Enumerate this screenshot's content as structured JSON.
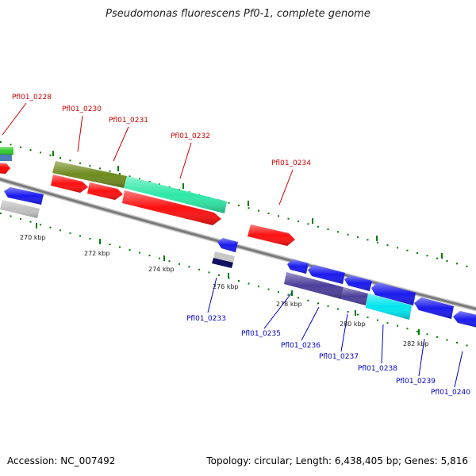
{
  "title": "Pseudomonas fluorescens Pf0-1, complete genome",
  "footer": {
    "accession": "Accession: NC_007492",
    "summary": "Topology: circular; Length: 6,438,405 bp; Genes: 5,816"
  },
  "colors": {
    "top_label": "#cc0000",
    "bottom_label": "#0000cc",
    "backbone": "#8a8a8a",
    "tick": "#007a00"
  },
  "scale_ticks": [
    "270 kbp",
    "272 kbp",
    "274 kbp",
    "276 kbp",
    "278 kbp",
    "280 kbp",
    "282 kbp"
  ],
  "gene_labels_top": [
    "Pfl01_0228",
    "Pfl01_0230",
    "Pfl01_0231",
    "Pfl01_0232",
    "Pfl01_0234"
  ],
  "gene_labels_bottom": [
    "Pfl01_0233",
    "Pfl01_0235",
    "Pfl01_0236",
    "Pfl01_0237",
    "Pfl01_0238",
    "Pfl01_0239",
    "Pfl01_0240"
  ]
}
